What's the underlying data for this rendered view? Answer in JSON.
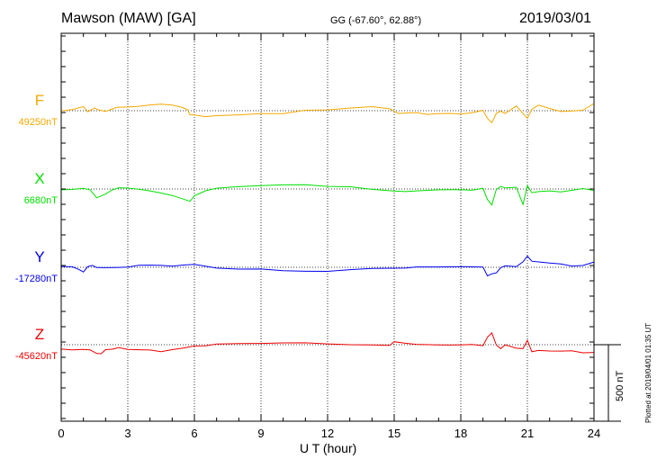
{
  "header": {
    "station": "Mawson (MAW)  [GA]",
    "coords": "GG (-67.60°,  62.88°)",
    "date": "2019/03/01"
  },
  "footer": {
    "plotted": "Plotted at 2019/04/01 01:35 UT",
    "scale_label": "500 nT"
  },
  "chart_data": {
    "type": "line",
    "title": "Mawson (MAW)  [GA]",
    "xlabel": "U T (hour)",
    "xlim": [
      0,
      24
    ],
    "xticks": [
      "0",
      "3",
      "6",
      "9",
      "12",
      "15",
      "18",
      "21",
      "24"
    ],
    "y_scale_bar_nT": 500,
    "series": [
      {
        "name": "F",
        "baseline_label": "49250nT",
        "color": "#f5a800",
        "x": [
          0,
          0.5,
          1.0,
          1.2,
          1.5,
          1.7,
          2.0,
          2.5,
          3.0,
          3.5,
          4.0,
          4.5,
          5.0,
          5.4,
          5.7,
          5.8,
          6.0,
          6.5,
          7.0,
          8.0,
          9.0,
          10.0,
          11.0,
          12.0,
          13.0,
          14.0,
          14.8,
          15.0,
          15.2,
          15.5,
          16.0,
          16.5,
          17.0,
          17.5,
          18.0,
          18.5,
          19.0,
          19.2,
          19.4,
          19.6,
          19.8,
          20.0,
          20.5,
          21.0,
          21.2,
          21.5,
          22.0,
          22.5,
          23.0,
          23.5,
          24.0
        ],
        "y": [
          -2,
          15,
          40,
          10,
          35,
          20,
          5,
          25,
          20,
          18,
          22,
          25,
          20,
          12,
          0,
          -25,
          -20,
          -25,
          -15,
          -10,
          -5,
          -10,
          5,
          0,
          5,
          10,
          -5,
          -20,
          -30,
          -20,
          -10,
          -15,
          -5,
          0,
          -5,
          0,
          10,
          -50,
          -85,
          -30,
          -20,
          -35,
          15,
          -60,
          5,
          40,
          25,
          10,
          15,
          20,
          60
        ]
      },
      {
        "name": "X",
        "baseline_label": "6680nT",
        "color": "#00e000",
        "x": [
          0,
          0.5,
          1.0,
          1.3,
          1.6,
          2.0,
          2.3,
          2.6,
          3.0,
          3.5,
          4.0,
          4.5,
          5.0,
          5.5,
          5.8,
          6.0,
          6.5,
          7.0,
          8.0,
          9.0,
          10.0,
          11.0,
          12.0,
          13.0,
          14.0,
          15.0,
          15.5,
          16.0,
          17.0,
          18.0,
          18.5,
          19.0,
          19.2,
          19.4,
          19.6,
          19.8,
          20.0,
          20.5,
          20.8,
          21.0,
          21.2,
          21.5,
          22.0,
          22.5,
          23.0,
          23.5,
          24.0
        ],
        "y": [
          0,
          -5,
          -5,
          -20,
          -75,
          -50,
          -20,
          0,
          5,
          5,
          0,
          -10,
          -25,
          -50,
          -70,
          -40,
          -15,
          -5,
          0,
          5,
          10,
          15,
          10,
          15,
          5,
          0,
          0,
          5,
          10,
          5,
          -5,
          0,
          -80,
          -120,
          -20,
          0,
          -5,
          5,
          -100,
          30,
          -10,
          0,
          5,
          -5,
          0,
          5,
          -15
        ]
      },
      {
        "name": "Y",
        "baseline_label": "-17280nT",
        "color": "#0000ee",
        "x": [
          0,
          0.5,
          0.8,
          1.0,
          1.2,
          1.4,
          1.6,
          2.0,
          2.5,
          3.0,
          3.5,
          4.0,
          4.5,
          5.0,
          5.5,
          6.0,
          6.5,
          7.0,
          8.0,
          9.0,
          10.0,
          11.0,
          12.0,
          13.0,
          14.0,
          15.0,
          15.5,
          16.0,
          17.0,
          18.0,
          18.5,
          19.0,
          19.2,
          19.4,
          19.6,
          19.8,
          20.0,
          20.5,
          20.8,
          21.0,
          21.2,
          21.5,
          22.0,
          22.5,
          23.0,
          23.5,
          24.0
        ],
        "y": [
          -5,
          0,
          -10,
          -20,
          20,
          30,
          15,
          10,
          5,
          0,
          5,
          0,
          -5,
          -10,
          0,
          10,
          5,
          0,
          0,
          5,
          -5,
          -10,
          -15,
          -10,
          -10,
          -15,
          -20,
          -15,
          -15,
          -10,
          -5,
          0,
          -50,
          -30,
          -20,
          15,
          25,
          15,
          40,
          70,
          30,
          20,
          10,
          5,
          -5,
          5,
          35
        ]
      },
      {
        "name": "Z",
        "baseline_label": "-45620nT",
        "color": "#ee0000",
        "x": [
          0,
          0.5,
          1.0,
          1.3,
          1.6,
          1.8,
          2.0,
          2.3,
          2.6,
          3.0,
          3.5,
          4.0,
          4.5,
          5.0,
          5.5,
          6.0,
          6.5,
          7.0,
          8.0,
          9.0,
          10.0,
          11.0,
          12.0,
          13.0,
          14.0,
          14.8,
          15.0,
          15.5,
          16.0,
          17.0,
          17.5,
          18.0,
          18.5,
          19.0,
          19.2,
          19.4,
          19.6,
          19.8,
          20.0,
          20.5,
          20.8,
          21.0,
          21.2,
          21.5,
          22.0,
          22.5,
          23.0,
          23.5,
          24.0
        ],
        "y": [
          -15,
          -25,
          -30,
          -40,
          -70,
          -75,
          -50,
          -45,
          -30,
          -35,
          -30,
          -25,
          -30,
          -15,
          -5,
          5,
          0,
          5,
          0,
          -5,
          -5,
          -5,
          -10,
          -10,
          -5,
          0,
          30,
          25,
          20,
          15,
          10,
          5,
          0,
          -15,
          35,
          60,
          -20,
          -40,
          -10,
          -25,
          -20,
          40,
          -30,
          -20,
          -25,
          -30,
          -35,
          -55,
          -60
        ]
      }
    ]
  }
}
